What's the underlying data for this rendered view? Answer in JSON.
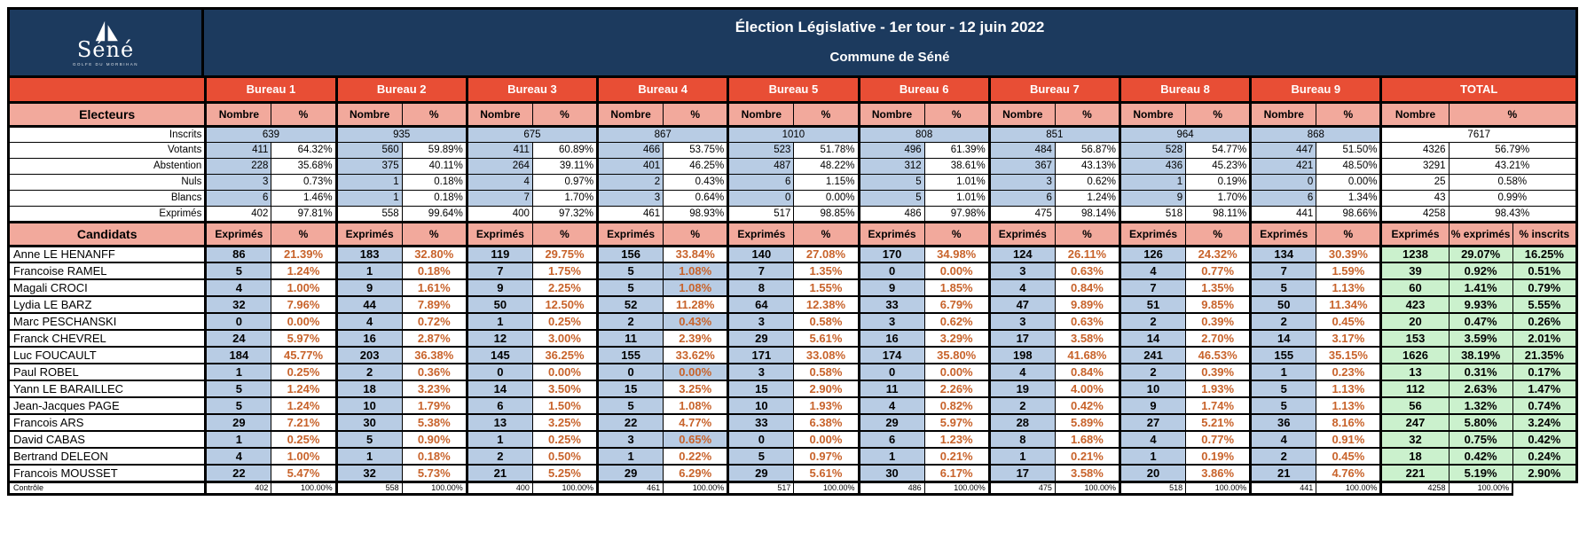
{
  "logo": {
    "name": "Séné",
    "tagline": "GOLFE DU MORBIHAN"
  },
  "title": {
    "line1": "Élection Législative - 1er tour - 12 juin 2022",
    "line2": "Commune de Séné"
  },
  "colors": {
    "header_bg": "#1C3A5E",
    "bureau_header_bg": "#E84E35",
    "section_bg": "#F2A99C",
    "cell_blue": "#B8CCE4",
    "cell_green": "#CBF1CD",
    "pct_text": "#C8632B"
  },
  "bureaus": [
    "Bureau 1",
    "Bureau 2",
    "Bureau 3",
    "Bureau 4",
    "Bureau 5",
    "Bureau 6",
    "Bureau 7",
    "Bureau 8",
    "Bureau 9"
  ],
  "total_label": "TOTAL",
  "electeurs": {
    "section_label": "Electeurs",
    "nombre_header": "Nombre",
    "pct_header": "%",
    "rows": [
      {
        "label": "Inscrits",
        "merged": true,
        "values": [
          639,
          935,
          675,
          867,
          1010,
          808,
          851,
          964,
          868
        ],
        "total": 7617
      },
      {
        "label": "Votants",
        "values": [
          [
            411,
            "64.32%"
          ],
          [
            560,
            "59.89%"
          ],
          [
            411,
            "60.89%"
          ],
          [
            466,
            "53.75%"
          ],
          [
            523,
            "51.78%"
          ],
          [
            496,
            "61.39%"
          ],
          [
            484,
            "56.87%"
          ],
          [
            528,
            "54.77%"
          ],
          [
            447,
            "51.50%"
          ]
        ],
        "total": [
          4326,
          "56.79%"
        ]
      },
      {
        "label": "Abstention",
        "values": [
          [
            228,
            "35.68%"
          ],
          [
            375,
            "40.11%"
          ],
          [
            264,
            "39.11%"
          ],
          [
            401,
            "46.25%"
          ],
          [
            487,
            "48.22%"
          ],
          [
            312,
            "38.61%"
          ],
          [
            367,
            "43.13%"
          ],
          [
            436,
            "45.23%"
          ],
          [
            421,
            "48.50%"
          ]
        ],
        "total": [
          3291,
          "43.21%"
        ]
      },
      {
        "label": "Nuls",
        "values": [
          [
            3,
            "0.73%"
          ],
          [
            1,
            "0.18%"
          ],
          [
            4,
            "0.97%"
          ],
          [
            2,
            "0.43%"
          ],
          [
            6,
            "1.15%"
          ],
          [
            5,
            "1.01%"
          ],
          [
            3,
            "0.62%"
          ],
          [
            1,
            "0.19%"
          ],
          [
            0,
            "0.00%"
          ]
        ],
        "total": [
          25,
          "0.58%"
        ]
      },
      {
        "label": "Blancs",
        "values": [
          [
            6,
            "1.46%"
          ],
          [
            1,
            "0.18%"
          ],
          [
            7,
            "1.70%"
          ],
          [
            3,
            "0.64%"
          ],
          [
            0,
            "0.00%"
          ],
          [
            5,
            "1.01%"
          ],
          [
            6,
            "1.24%"
          ],
          [
            9,
            "1.70%"
          ],
          [
            6,
            "1.34%"
          ]
        ],
        "total": [
          43,
          "0.99%"
        ]
      },
      {
        "label": "Exprimés",
        "white": true,
        "values": [
          [
            402,
            "97.81%"
          ],
          [
            558,
            "99.64%"
          ],
          [
            400,
            "97.32%"
          ],
          [
            461,
            "98.93%"
          ],
          [
            517,
            "98.85%"
          ],
          [
            486,
            "97.98%"
          ],
          [
            475,
            "98.14%"
          ],
          [
            518,
            "98.11%"
          ],
          [
            441,
            "98.66%"
          ]
        ],
        "total": [
          4258,
          "98.43%"
        ]
      }
    ]
  },
  "candidats": {
    "section_label": "Candidats",
    "exprimes_header": "Exprimés",
    "pct_header": "%",
    "total_headers": [
      "Exprimés",
      "% exprimés",
      "% inscrits"
    ],
    "blue_pct_cells": [
      [
        1,
        3
      ],
      [
        2,
        3
      ],
      [
        4,
        3
      ],
      [
        7,
        3
      ],
      [
        11,
        3
      ]
    ],
    "rows": [
      {
        "name": "Anne LE HENANFF",
        "bureaus": [
          [
            86,
            "21.39%"
          ],
          [
            183,
            "32.80%"
          ],
          [
            119,
            "29.75%"
          ],
          [
            156,
            "33.84%"
          ],
          [
            140,
            "27.08%"
          ],
          [
            170,
            "34.98%"
          ],
          [
            124,
            "26.11%"
          ],
          [
            126,
            "24.32%"
          ],
          [
            134,
            "30.39%"
          ]
        ],
        "total": [
          1238,
          "29.07%",
          "16.25%"
        ]
      },
      {
        "name": "Francoise RAMEL",
        "bureaus": [
          [
            5,
            "1.24%"
          ],
          [
            1,
            "0.18%"
          ],
          [
            7,
            "1.75%"
          ],
          [
            5,
            "1.08%"
          ],
          [
            7,
            "1.35%"
          ],
          [
            0,
            "0.00%"
          ],
          [
            3,
            "0.63%"
          ],
          [
            4,
            "0.77%"
          ],
          [
            7,
            "1.59%"
          ]
        ],
        "total": [
          39,
          "0.92%",
          "0.51%"
        ]
      },
      {
        "name": "Magali CROCI",
        "bureaus": [
          [
            4,
            "1.00%"
          ],
          [
            9,
            "1.61%"
          ],
          [
            9,
            "2.25%"
          ],
          [
            5,
            "1.08%"
          ],
          [
            8,
            "1.55%"
          ],
          [
            9,
            "1.85%"
          ],
          [
            4,
            "0.84%"
          ],
          [
            7,
            "1.35%"
          ],
          [
            5,
            "1.13%"
          ]
        ],
        "total": [
          60,
          "1.41%",
          "0.79%"
        ]
      },
      {
        "name": "Lydia LE BARZ",
        "bureaus": [
          [
            32,
            "7.96%"
          ],
          [
            44,
            "7.89%"
          ],
          [
            50,
            "12.50%"
          ],
          [
            52,
            "11.28%"
          ],
          [
            64,
            "12.38%"
          ],
          [
            33,
            "6.79%"
          ],
          [
            47,
            "9.89%"
          ],
          [
            51,
            "9.85%"
          ],
          [
            50,
            "11.34%"
          ]
        ],
        "total": [
          423,
          "9.93%",
          "5.55%"
        ]
      },
      {
        "name": "Marc PESCHANSKI",
        "bureaus": [
          [
            0,
            "0.00%"
          ],
          [
            4,
            "0.72%"
          ],
          [
            1,
            "0.25%"
          ],
          [
            2,
            "0.43%"
          ],
          [
            3,
            "0.58%"
          ],
          [
            3,
            "0.62%"
          ],
          [
            3,
            "0.63%"
          ],
          [
            2,
            "0.39%"
          ],
          [
            2,
            "0.45%"
          ]
        ],
        "total": [
          20,
          "0.47%",
          "0.26%"
        ]
      },
      {
        "name": "Franck CHEVREL",
        "bureaus": [
          [
            24,
            "5.97%"
          ],
          [
            16,
            "2.87%"
          ],
          [
            12,
            "3.00%"
          ],
          [
            11,
            "2.39%"
          ],
          [
            29,
            "5.61%"
          ],
          [
            16,
            "3.29%"
          ],
          [
            17,
            "3.58%"
          ],
          [
            14,
            "2.70%"
          ],
          [
            14,
            "3.17%"
          ]
        ],
        "total": [
          153,
          "3.59%",
          "2.01%"
        ]
      },
      {
        "name": "Luc FOUCAULT",
        "bureaus": [
          [
            184,
            "45.77%"
          ],
          [
            203,
            "36.38%"
          ],
          [
            145,
            "36.25%"
          ],
          [
            155,
            "33.62%"
          ],
          [
            171,
            "33.08%"
          ],
          [
            174,
            "35.80%"
          ],
          [
            198,
            "41.68%"
          ],
          [
            241,
            "46.53%"
          ],
          [
            155,
            "35.15%"
          ]
        ],
        "total": [
          1626,
          "38.19%",
          "21.35%"
        ]
      },
      {
        "name": "Paul ROBEL",
        "bureaus": [
          [
            1,
            "0.25%"
          ],
          [
            2,
            "0.36%"
          ],
          [
            0,
            "0.00%"
          ],
          [
            0,
            "0.00%"
          ],
          [
            3,
            "0.58%"
          ],
          [
            0,
            "0.00%"
          ],
          [
            4,
            "0.84%"
          ],
          [
            2,
            "0.39%"
          ],
          [
            1,
            "0.23%"
          ]
        ],
        "total": [
          13,
          "0.31%",
          "0.17%"
        ]
      },
      {
        "name": "Yann LE BARAILLEC",
        "bureaus": [
          [
            5,
            "1.24%"
          ],
          [
            18,
            "3.23%"
          ],
          [
            14,
            "3.50%"
          ],
          [
            15,
            "3.25%"
          ],
          [
            15,
            "2.90%"
          ],
          [
            11,
            "2.26%"
          ],
          [
            19,
            "4.00%"
          ],
          [
            10,
            "1.93%"
          ],
          [
            5,
            "1.13%"
          ]
        ],
        "total": [
          112,
          "2.63%",
          "1.47%"
        ]
      },
      {
        "name": "Jean-Jacques PAGE",
        "bureaus": [
          [
            5,
            "1.24%"
          ],
          [
            10,
            "1.79%"
          ],
          [
            6,
            "1.50%"
          ],
          [
            5,
            "1.08%"
          ],
          [
            10,
            "1.93%"
          ],
          [
            4,
            "0.82%"
          ],
          [
            2,
            "0.42%"
          ],
          [
            9,
            "1.74%"
          ],
          [
            5,
            "1.13%"
          ]
        ],
        "total": [
          56,
          "1.32%",
          "0.74%"
        ]
      },
      {
        "name": "Francois ARS",
        "bureaus": [
          [
            29,
            "7.21%"
          ],
          [
            30,
            "5.38%"
          ],
          [
            13,
            "3.25%"
          ],
          [
            22,
            "4.77%"
          ],
          [
            33,
            "6.38%"
          ],
          [
            29,
            "5.97%"
          ],
          [
            28,
            "5.89%"
          ],
          [
            27,
            "5.21%"
          ],
          [
            36,
            "8.16%"
          ]
        ],
        "total": [
          247,
          "5.80%",
          "3.24%"
        ]
      },
      {
        "name": "David CABAS",
        "bureaus": [
          [
            1,
            "0.25%"
          ],
          [
            5,
            "0.90%"
          ],
          [
            1,
            "0.25%"
          ],
          [
            3,
            "0.65%"
          ],
          [
            0,
            "0.00%"
          ],
          [
            6,
            "1.23%"
          ],
          [
            8,
            "1.68%"
          ],
          [
            4,
            "0.77%"
          ],
          [
            4,
            "0.91%"
          ]
        ],
        "total": [
          32,
          "0.75%",
          "0.42%"
        ]
      },
      {
        "name": "Bertrand DELEON",
        "bureaus": [
          [
            4,
            "1.00%"
          ],
          [
            1,
            "0.18%"
          ],
          [
            2,
            "0.50%"
          ],
          [
            1,
            "0.22%"
          ],
          [
            5,
            "0.97%"
          ],
          [
            1,
            "0.21%"
          ],
          [
            1,
            "0.21%"
          ],
          [
            1,
            "0.19%"
          ],
          [
            2,
            "0.45%"
          ]
        ],
        "total": [
          18,
          "0.42%",
          "0.24%"
        ]
      },
      {
        "name": "Francois MOUSSET",
        "bureaus": [
          [
            22,
            "5.47%"
          ],
          [
            32,
            "5.73%"
          ],
          [
            21,
            "5.25%"
          ],
          [
            29,
            "6.29%"
          ],
          [
            29,
            "5.61%"
          ],
          [
            30,
            "6.17%"
          ],
          [
            17,
            "3.58%"
          ],
          [
            20,
            "3.86%"
          ],
          [
            21,
            "4.76%"
          ]
        ],
        "total": [
          221,
          "5.19%",
          "2.90%"
        ]
      }
    ]
  },
  "controle": {
    "label": "Contrôle",
    "values": [
      [
        402,
        "100.00%"
      ],
      [
        558,
        "100.00%"
      ],
      [
        400,
        "100.00%"
      ],
      [
        461,
        "100.00%"
      ],
      [
        517,
        "100.00%"
      ],
      [
        486,
        "100.00%"
      ],
      [
        475,
        "100.00%"
      ],
      [
        518,
        "100.00%"
      ],
      [
        441,
        "100.00%"
      ]
    ],
    "total": [
      4258,
      "100.00%"
    ]
  }
}
